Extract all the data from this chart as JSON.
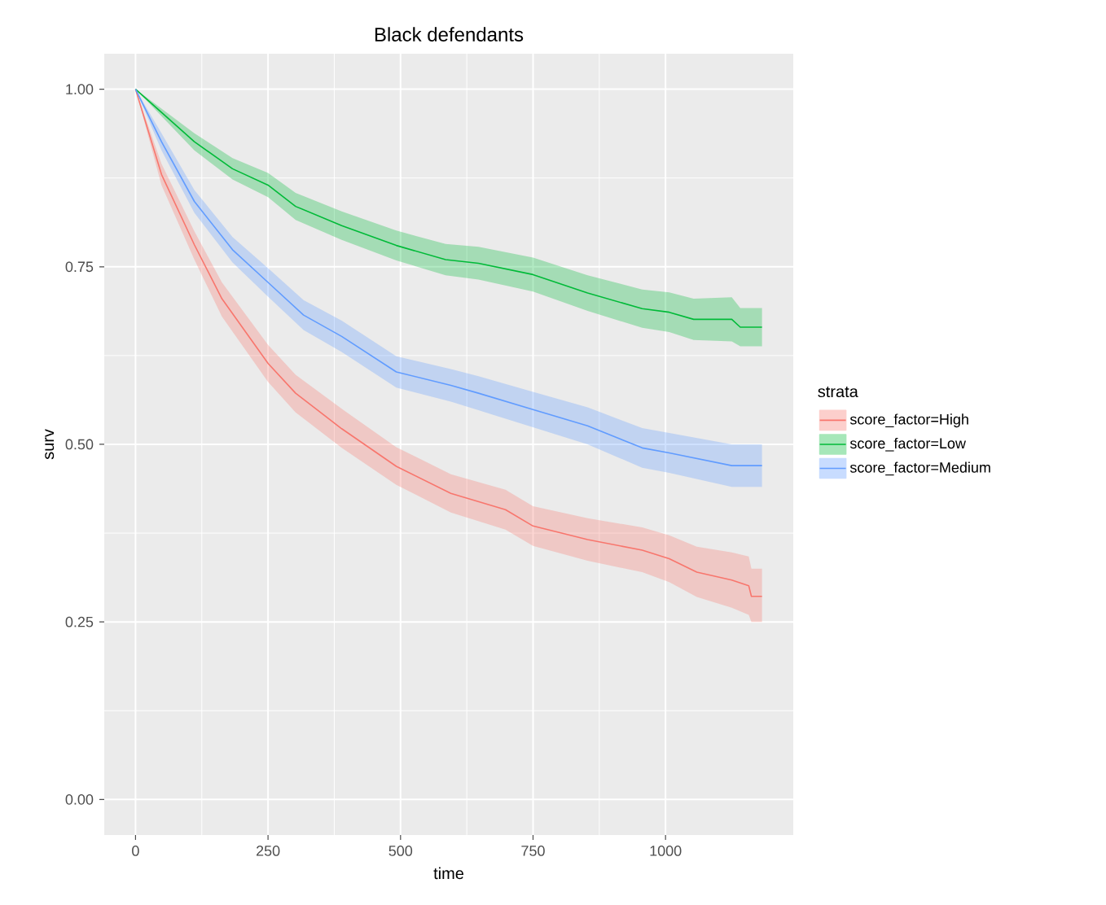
{
  "chart_data": {
    "type": "line",
    "title": "Black defendants",
    "xlabel": "time",
    "ylabel": "surv",
    "legend_title": "strata",
    "legend": "right",
    "grid": true,
    "xlim": [
      -59,
      1241
    ],
    "ylim": [
      -0.05,
      1.05
    ],
    "xticks": [
      0,
      250,
      500,
      750,
      1000
    ],
    "yticks": [
      {
        "value": 0,
        "label": "0.00"
      },
      {
        "value": 0.25,
        "label": "0.25"
      },
      {
        "value": 0.5,
        "label": "0.50"
      },
      {
        "value": 0.75,
        "label": "0.75"
      },
      {
        "value": 1,
        "label": "1.00"
      }
    ],
    "series": [
      {
        "name": "score_factor=High",
        "color": "#f8766d",
        "x": [
          0,
          49,
          111,
          163,
          250,
          302,
          389,
          492,
          595,
          698,
          750,
          853,
          956,
          1007,
          1059,
          1125,
          1157,
          1162,
          1182
        ],
        "values": [
          1,
          0.88,
          0.781,
          0.705,
          0.614,
          0.572,
          0.522,
          0.469,
          0.431,
          0.408,
          0.385,
          0.366,
          0.351,
          0.339,
          0.32,
          0.309,
          0.301,
          0.286,
          0.286
        ],
        "lower": [
          1,
          0.865,
          0.76,
          0.68,
          0.588,
          0.545,
          0.495,
          0.443,
          0.404,
          0.38,
          0.357,
          0.336,
          0.32,
          0.306,
          0.285,
          0.27,
          0.26,
          0.25,
          0.25
        ],
        "upper": [
          1,
          0.895,
          0.8,
          0.728,
          0.64,
          0.598,
          0.55,
          0.496,
          0.458,
          0.436,
          0.413,
          0.396,
          0.383,
          0.372,
          0.356,
          0.348,
          0.342,
          0.325,
          0.325
        ]
      },
      {
        "name": "score_factor=Low",
        "color": "#00ba38",
        "x": [
          0,
          111,
          183,
          250,
          302,
          389,
          492,
          585,
          647,
          750,
          853,
          956,
          1007,
          1053,
          1125,
          1141,
          1182
        ],
        "values": [
          1,
          0.926,
          0.888,
          0.865,
          0.835,
          0.808,
          0.78,
          0.76,
          0.755,
          0.739,
          0.713,
          0.691,
          0.686,
          0.676,
          0.676,
          0.665,
          0.665
        ],
        "lower": [
          1,
          0.914,
          0.873,
          0.848,
          0.816,
          0.788,
          0.759,
          0.738,
          0.732,
          0.715,
          0.688,
          0.664,
          0.658,
          0.647,
          0.645,
          0.638,
          0.638
        ],
        "upper": [
          1,
          0.938,
          0.903,
          0.882,
          0.854,
          0.828,
          0.801,
          0.782,
          0.778,
          0.763,
          0.738,
          0.718,
          0.714,
          0.705,
          0.707,
          0.692,
          0.692
        ]
      },
      {
        "name": "score_factor=Medium",
        "color": "#619cff",
        "x": [
          0,
          49,
          111,
          183,
          250,
          317,
          389,
          492,
          595,
          647,
          750,
          853,
          956,
          1007,
          1125,
          1182
        ],
        "values": [
          1,
          0.926,
          0.842,
          0.774,
          0.728,
          0.682,
          0.652,
          0.602,
          0.583,
          0.572,
          0.549,
          0.526,
          0.495,
          0.488,
          0.47,
          0.47
        ],
        "lower": [
          1,
          0.914,
          0.826,
          0.756,
          0.708,
          0.661,
          0.63,
          0.58,
          0.56,
          0.548,
          0.524,
          0.5,
          0.467,
          0.46,
          0.44,
          0.44
        ],
        "upper": [
          1,
          0.938,
          0.858,
          0.792,
          0.748,
          0.703,
          0.674,
          0.624,
          0.606,
          0.596,
          0.574,
          0.552,
          0.523,
          0.516,
          0.5,
          0.5
        ]
      }
    ]
  }
}
